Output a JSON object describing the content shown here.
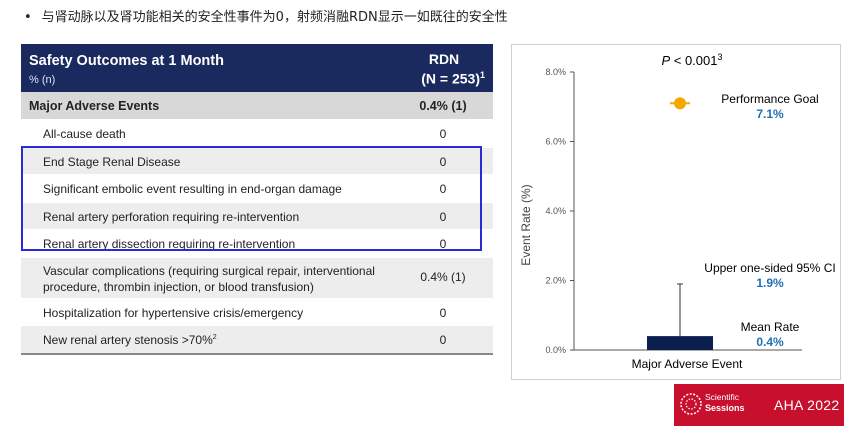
{
  "headline": "与肾动脉以及肾功能相关的安全性事件为0，射频消融RDN显示一如既往的安全性",
  "table": {
    "title": "Safety Outcomes at 1 Month",
    "subtitle": "% (n)",
    "col_name": "RDN",
    "col_n": "(N = 253)",
    "col_n_sup": "1",
    "major_label": "Major Adverse Events",
    "major_value": "0.4% (1)",
    "rows": [
      {
        "label": "All-cause death",
        "value": "0"
      },
      {
        "label": "End Stage Renal Disease",
        "value": "0"
      },
      {
        "label": "Significant embolic event resulting in end-organ damage",
        "value": "0"
      },
      {
        "label": "Renal artery perforation requiring re-intervention",
        "value": "0"
      },
      {
        "label": "Renal artery dissection requiring re-intervention",
        "value": "0"
      },
      {
        "label": "Vascular complications (requiring surgical repair, interventional procedure, thrombin injection, or blood transfusion)",
        "value": "0.4% (1)"
      },
      {
        "label": "Hospitalization for hypertensive crisis/emergency",
        "value": "0"
      },
      {
        "label": "New renal artery stenosis >70%",
        "label_sup": "2",
        "value": "0"
      }
    ]
  },
  "chart_data": {
    "type": "bar",
    "title": "P < 0.001",
    "title_sup": "3",
    "categories": [
      "Major Adverse Event"
    ],
    "values": [
      0.4
    ],
    "upper_ci": 1.9,
    "performance_goal": 7.1,
    "ylabel": "Event Rate (%)",
    "ylim": [
      0,
      8
    ],
    "yticks": [
      "0.0%",
      "2.0%",
      "4.0%",
      "6.0%",
      "8.0%"
    ],
    "yticks_values": [
      0,
      2,
      4,
      6,
      8
    ],
    "annotations": {
      "goal_label": "Performance Goal",
      "goal_value": "7.1%",
      "ci_label": "Upper one-sided 95% CI",
      "ci_value": "1.9%",
      "mean_label": "Mean Rate",
      "mean_value": "0.4%"
    },
    "colors": {
      "bar": "#0b1f4f",
      "goal": "#f5a800",
      "value_text": "#1f6fb2"
    }
  },
  "badge": {
    "line1": "Scientific",
    "line2": "Sessions",
    "brand": "AHA 2022"
  }
}
